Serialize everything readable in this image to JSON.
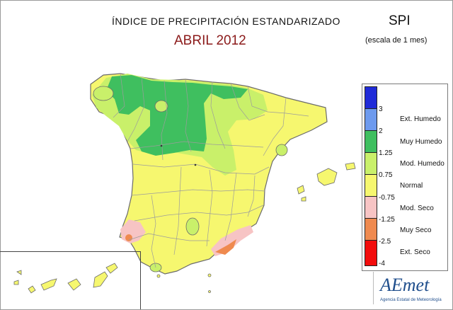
{
  "header": {
    "title": "ÍNDICE DE PRECIPITACIÓN ESTANDARIZADO",
    "subtitle": "ABRIL 2012",
    "index_code": "SPI",
    "scale_note": "(escala de 1 mes)"
  },
  "legend": {
    "ticks": [
      "3",
      "2",
      "1.25",
      "0.75",
      "-0.75",
      "-1.25",
      "-2.5",
      "-4"
    ],
    "categories": [
      {
        "label": "Ext. Humedo",
        "color": "#1f2bd8"
      },
      {
        "label": "Muy Humedo",
        "color": "#6d9aee"
      },
      {
        "label": "Mod. Humedo",
        "color": "#3fbf5f"
      },
      {
        "label": "Normal",
        "color": "#c9f06a"
      },
      {
        "label": "Mod. Seco",
        "color": "#f6f76f"
      },
      {
        "label": "Muy Seco",
        "color": "#f7c4c4"
      },
      {
        "label": "Ext. Seco",
        "color": "#ef8a4f"
      }
    ],
    "extra_color": "#f20c0c"
  },
  "map_colors": {
    "normal": "#f6f76f",
    "mod_humedo": "#c9f06a",
    "muy_humedo": "#3fbf5f",
    "mod_seco": "#f7c4c4",
    "muy_seco": "#ef8a4f",
    "province_lines": "#9c9c9c",
    "coast": "#6b6b6b"
  },
  "logo": {
    "word": "AEmet",
    "tagline": "Agencia Estatal de Meteorología"
  }
}
